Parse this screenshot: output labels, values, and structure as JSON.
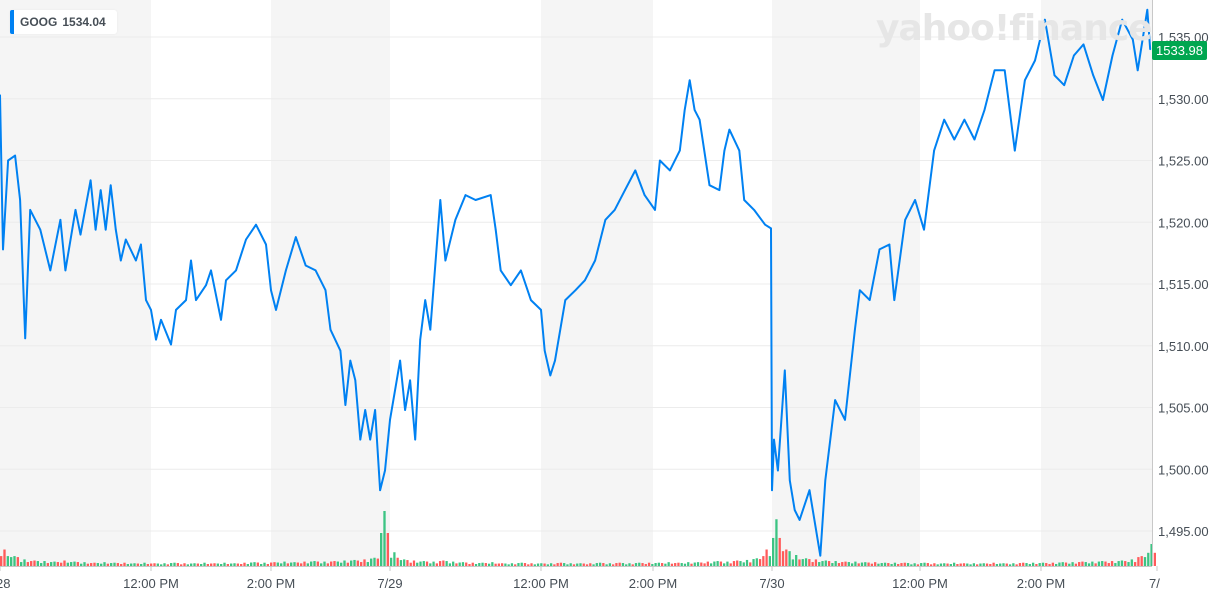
{
  "legend": {
    "symbol": "GOOG",
    "value": "1534.04",
    "color": "#0081f2"
  },
  "watermark": "yahoo!finance",
  "last_price_tag": {
    "value": "1533.98",
    "color": "#00a650"
  },
  "chart_data": {
    "type": "line",
    "title": "",
    "xlabel": "",
    "ylabel": "",
    "ylim": [
      1492,
      1538
    ],
    "y_ticks": [
      "1,495.00",
      "1,500.00",
      "1,505.00",
      "1,510.00",
      "1,515.00",
      "1,520.00",
      "1,525.00",
      "1,530.00",
      "1,535.00"
    ],
    "y_tick_values": [
      1495,
      1500,
      1505,
      1510,
      1515,
      1520,
      1525,
      1530,
      1535
    ],
    "x_ticks": [
      {
        "label": "28",
        "day": 0,
        "time": "09:30"
      },
      {
        "label": "12:00 PM",
        "day": 0,
        "time": "12:00"
      },
      {
        "label": "2:00 PM",
        "day": 0,
        "time": "14:00"
      },
      {
        "label": "7/29",
        "day": 1,
        "time": "09:30"
      },
      {
        "label": "12:00 PM",
        "day": 1,
        "time": "12:00"
      },
      {
        "label": "2:00 PM",
        "day": 1,
        "time": "14:00"
      },
      {
        "label": "7/30",
        "day": 2,
        "time": "09:30"
      },
      {
        "label": "12:00 PM",
        "day": 2,
        "time": "12:00"
      },
      {
        "label": "2:00 PM",
        "day": 2,
        "time": "14:00"
      },
      {
        "label": "7/",
        "day": 3,
        "time": "09:30"
      }
    ],
    "grid": true,
    "line_color": "#0081f2",
    "volume_up_color": "#3cc483",
    "volume_down_color": "#ff5b5b",
    "series": [
      {
        "day": 0,
        "points": [
          [
            "09:30",
            1530.3
          ],
          [
            "09:33",
            1517.8
          ],
          [
            "09:38",
            1525.0
          ],
          [
            "09:45",
            1525.4
          ],
          [
            "09:50",
            1521.8
          ],
          [
            "09:55",
            1510.6
          ],
          [
            "10:00",
            1521.0
          ],
          [
            "10:10",
            1519.4
          ],
          [
            "10:20",
            1516.1
          ],
          [
            "10:30",
            1520.2
          ],
          [
            "10:35",
            1516.1
          ],
          [
            "10:45",
            1521.0
          ],
          [
            "10:50",
            1519.0
          ],
          [
            "11:00",
            1523.4
          ],
          [
            "11:05",
            1519.4
          ],
          [
            "11:10",
            1522.6
          ],
          [
            "11:15",
            1519.4
          ],
          [
            "11:20",
            1523.0
          ],
          [
            "11:25",
            1519.4
          ],
          [
            "11:30",
            1516.9
          ],
          [
            "11:35",
            1518.6
          ],
          [
            "11:45",
            1516.9
          ],
          [
            "11:50",
            1518.2
          ],
          [
            "11:55",
            1513.7
          ],
          [
            "12:00",
            1512.9
          ],
          [
            "12:05",
            1510.5
          ],
          [
            "12:10",
            1512.1
          ],
          [
            "12:20",
            1510.1
          ],
          [
            "12:25",
            1512.9
          ],
          [
            "12:35",
            1513.7
          ],
          [
            "12:40",
            1516.9
          ],
          [
            "12:45",
            1513.7
          ],
          [
            "12:55",
            1514.9
          ],
          [
            "13:00",
            1516.1
          ],
          [
            "13:10",
            1512.1
          ],
          [
            "13:15",
            1515.3
          ],
          [
            "13:25",
            1516.1
          ],
          [
            "13:35",
            1518.6
          ],
          [
            "13:45",
            1519.8
          ],
          [
            "13:55",
            1518.2
          ],
          [
            "14:00",
            1514.5
          ],
          [
            "14:05",
            1512.9
          ],
          [
            "14:15",
            1516.1
          ],
          [
            "14:25",
            1518.8
          ],
          [
            "14:35",
            1516.5
          ],
          [
            "14:45",
            1516.1
          ],
          [
            "14:55",
            1514.5
          ],
          [
            "15:00",
            1511.3
          ],
          [
            "15:10",
            1509.6
          ],
          [
            "15:15",
            1505.2
          ],
          [
            "15:20",
            1508.8
          ],
          [
            "15:25",
            1507.2
          ],
          [
            "15:30",
            1502.4
          ],
          [
            "15:35",
            1504.8
          ],
          [
            "15:40",
            1502.4
          ],
          [
            "15:45",
            1504.8
          ],
          [
            "15:50",
            1498.3
          ],
          [
            "15:55",
            1499.9
          ],
          [
            "16:00",
            1504.0
          ]
        ]
      },
      {
        "day": 1,
        "points": [
          [
            "09:40",
            1508.8
          ],
          [
            "09:45",
            1504.8
          ],
          [
            "09:50",
            1507.2
          ],
          [
            "09:55",
            1502.4
          ],
          [
            "10:00",
            1510.5
          ],
          [
            "10:05",
            1513.7
          ],
          [
            "10:10",
            1511.3
          ],
          [
            "10:20",
            1521.8
          ],
          [
            "10:25",
            1516.9
          ],
          [
            "10:35",
            1520.2
          ],
          [
            "10:45",
            1522.2
          ],
          [
            "10:55",
            1521.8
          ],
          [
            "11:10",
            1522.2
          ],
          [
            "11:15",
            1519.4
          ],
          [
            "11:20",
            1516.1
          ],
          [
            "11:30",
            1514.9
          ],
          [
            "11:40",
            1516.1
          ],
          [
            "11:50",
            1513.7
          ],
          [
            "12:00",
            1512.9
          ],
          [
            "12:04",
            1509.6
          ],
          [
            "12:10",
            1507.6
          ],
          [
            "12:15",
            1508.8
          ],
          [
            "12:26",
            1513.7
          ],
          [
            "12:37",
            1514.5
          ],
          [
            "12:47",
            1515.3
          ],
          [
            "12:58",
            1516.9
          ],
          [
            "13:09",
            1520.2
          ],
          [
            "13:19",
            1521.0
          ],
          [
            "13:30",
            1522.6
          ],
          [
            "13:41",
            1524.2
          ],
          [
            "13:51",
            1522.2
          ],
          [
            "14:02",
            1521.0
          ],
          [
            "14:07",
            1525.0
          ],
          [
            "14:17",
            1524.2
          ],
          [
            "14:27",
            1525.8
          ],
          [
            "14:32",
            1529.1
          ],
          [
            "14:37",
            1531.5
          ],
          [
            "14:42",
            1529.1
          ],
          [
            "14:47",
            1528.3
          ],
          [
            "14:57",
            1523.0
          ],
          [
            "15:07",
            1522.6
          ],
          [
            "15:12",
            1525.8
          ],
          [
            "15:17",
            1527.5
          ],
          [
            "15:27",
            1525.8
          ],
          [
            "15:32",
            1521.8
          ],
          [
            "15:42",
            1521.0
          ],
          [
            "15:53",
            1519.8
          ],
          [
            "15:59",
            1519.5
          ]
        ]
      },
      {
        "day": 2,
        "points": [
          [
            "09:30",
            1498.3
          ],
          [
            "09:32",
            1502.4
          ],
          [
            "09:36",
            1499.9
          ],
          [
            "09:43",
            1508.0
          ],
          [
            "09:48",
            1499.1
          ],
          [
            "09:53",
            1496.7
          ],
          [
            "09:58",
            1495.9
          ],
          [
            "10:08",
            1498.3
          ],
          [
            "10:19",
            1493.0
          ],
          [
            "10:24",
            1499.1
          ],
          [
            "10:34",
            1505.6
          ],
          [
            "10:44",
            1504.0
          ],
          [
            "10:54",
            1511.3
          ],
          [
            "10:59",
            1514.5
          ],
          [
            "11:09",
            1513.7
          ],
          [
            "11:19",
            1517.8
          ],
          [
            "11:29",
            1518.2
          ],
          [
            "11:34",
            1513.7
          ],
          [
            "11:45",
            1520.2
          ],
          [
            "11:55",
            1521.8
          ],
          [
            "12:04",
            1519.4
          ],
          [
            "12:14",
            1525.8
          ],
          [
            "12:24",
            1528.3
          ],
          [
            "12:34",
            1526.7
          ],
          [
            "12:44",
            1528.3
          ],
          [
            "12:54",
            1526.7
          ],
          [
            "13:04",
            1529.1
          ],
          [
            "13:14",
            1532.3
          ],
          [
            "13:24",
            1532.3
          ],
          [
            "13:34",
            1525.8
          ],
          [
            "13:44",
            1531.5
          ],
          [
            "13:54",
            1533.1
          ],
          [
            "14:04",
            1536.4
          ],
          [
            "14:14",
            1531.9
          ],
          [
            "14:24",
            1531.1
          ],
          [
            "14:34",
            1533.5
          ],
          [
            "14:44",
            1534.4
          ],
          [
            "14:54",
            1531.9
          ],
          [
            "15:04",
            1529.9
          ],
          [
            "15:14",
            1533.5
          ],
          [
            "15:24",
            1536.4
          ],
          [
            "15:35",
            1534.8
          ],
          [
            "15:40",
            1532.3
          ],
          [
            "15:50",
            1537.2
          ],
          [
            "15:53",
            1534.0
          ]
        ]
      }
    ],
    "volume": [
      {
        "day": 0,
        "values": [
          30,
          18,
          12,
          10,
          9,
          8,
          10,
          8,
          7,
          6,
          7,
          6,
          6,
          5,
          6,
          5,
          5,
          6,
          5,
          5,
          6,
          5,
          6,
          5,
          6,
          7,
          6,
          7,
          8,
          7,
          8,
          9,
          8,
          9,
          10,
          11,
          12,
          15,
          100
        ]
      },
      {
        "day": 1,
        "values": [
          25,
          12,
          10,
          9,
          8,
          10,
          8,
          7,
          6,
          6,
          7,
          5,
          5,
          6,
          5,
          5,
          5,
          6,
          5,
          5,
          5,
          6,
          5,
          6,
          5,
          6,
          6,
          6,
          7,
          6,
          7,
          7,
          8,
          9,
          8,
          10,
          11,
          14,
          30
        ]
      },
      {
        "day": 2,
        "values": [
          85,
          30,
          20,
          14,
          12,
          10,
          9,
          8,
          8,
          7,
          7,
          6,
          6,
          6,
          5,
          6,
          5,
          5,
          6,
          5,
          5,
          5,
          6,
          5,
          5,
          6,
          6,
          6,
          6,
          7,
          7,
          8,
          8,
          9,
          9,
          10,
          12,
          18,
          40
        ]
      }
    ]
  }
}
